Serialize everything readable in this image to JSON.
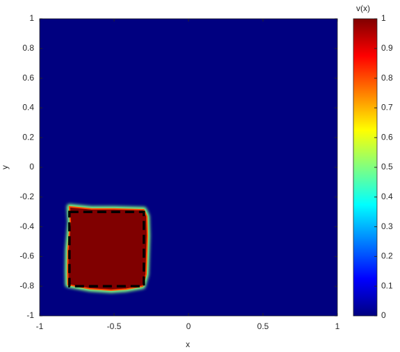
{
  "chart_data": {
    "type": "heatmap",
    "xlabel": "x",
    "ylabel": "y",
    "xlim": [
      -1,
      1
    ],
    "ylim": [
      -1,
      1
    ],
    "xticks": [
      -1,
      -0.5,
      0,
      0.5,
      1
    ],
    "yticks": [
      -1,
      -0.8,
      -0.6,
      -0.4,
      -0.2,
      0,
      0.2,
      0.4,
      0.6,
      0.8,
      1
    ],
    "background_value": 0,
    "regions": [
      {
        "value": 1,
        "x": [
          -0.8,
          -0.65,
          -0.5,
          -0.3,
          -0.28,
          -0.276,
          -0.285,
          -0.308,
          -0.42,
          -0.52,
          -0.66,
          -0.81,
          -0.812,
          -0.81,
          -0.794
        ],
        "y": [
          -0.265,
          -0.28,
          -0.28,
          -0.285,
          -0.33,
          -0.46,
          -0.72,
          -0.8,
          -0.82,
          -0.827,
          -0.818,
          -0.79,
          -0.7,
          -0.556,
          -0.369
        ]
      }
    ],
    "target_box": {
      "x": [
        -0.8,
        -0.3
      ],
      "y": [
        -0.8,
        -0.3
      ]
    },
    "colorbar": {
      "label": "v(x)",
      "clim": [
        0,
        1
      ],
      "ticks": [
        0,
        0.1,
        0.2,
        0.3,
        0.4,
        0.5,
        0.6,
        0.7,
        0.8,
        0.9,
        1
      ],
      "colormap": [
        "#000080",
        "#0000ff",
        "#0080ff",
        "#00ffff",
        "#80ff80",
        "#ffff00",
        "#ff8000",
        "#ff0000",
        "#800000"
      ]
    }
  }
}
